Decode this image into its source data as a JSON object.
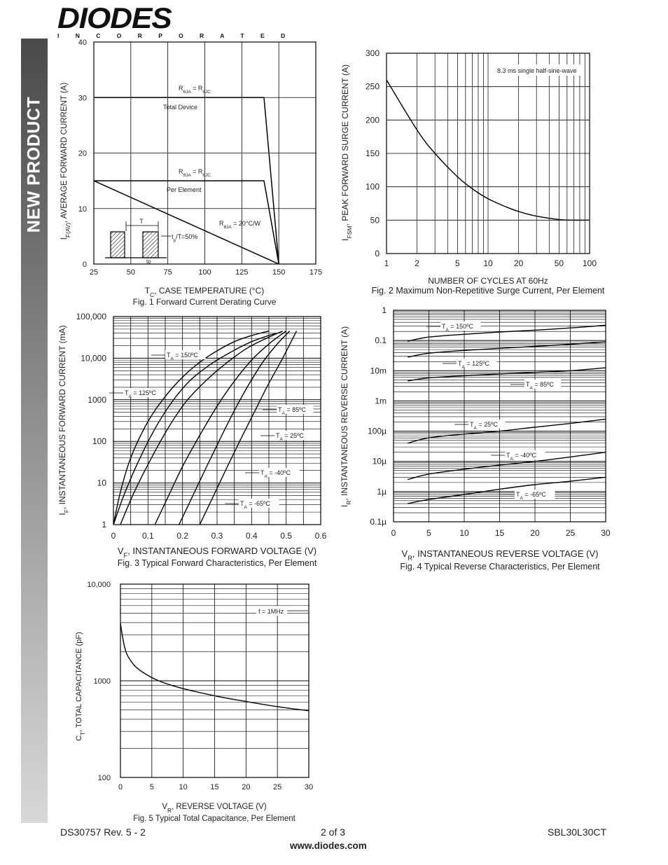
{
  "sidebar": {
    "label": "NEW PRODUCT"
  },
  "logo": {
    "name": "DIODES",
    "sub": "I N C O R P O R A T E D"
  },
  "footer": {
    "doc": "DS30757 Rev. 5 - 2",
    "page": "2 of 3",
    "part": "SBL30L30CT",
    "url": "www.diodes.com"
  },
  "chart_data": [
    {
      "type": "line",
      "id": "fig1",
      "title": "Fig. 1  Forward Current Derating Curve",
      "xlabel": "TC, CASE TEMPERATURE (°C)",
      "ylabel": "IF(AV), AVERAGE FORWARD CURRENT (A)",
      "xlim": [
        25,
        175
      ],
      "ylim": [
        0,
        40
      ],
      "xticks": [
        25,
        50,
        75,
        100,
        125,
        150,
        175
      ],
      "yticks": [
        0,
        10,
        20,
        30,
        40
      ],
      "series": [
        {
          "name": "Total Device",
          "x": [
            25,
            140,
            150
          ],
          "y": [
            30,
            30,
            0
          ]
        },
        {
          "name": "Per Element",
          "x": [
            25,
            140,
            150
          ],
          "y": [
            15,
            15,
            0
          ]
        },
        {
          "name": "RθJA = 20°C/W",
          "x": [
            25,
            150
          ],
          "y": [
            15,
            0
          ]
        }
      ],
      "annotations": {
        "r1": "RθJA = RθJC",
        "r1_label": "Total Device",
        "r2": "RθJA = RθJC",
        "r2_label": "Per Element",
        "r3": "RθJA = 20°C/W",
        "pulse_T": "T",
        "pulse_tp": "tp",
        "duty": "tp/T=50%"
      }
    },
    {
      "type": "line",
      "id": "fig2",
      "title": "Fig. 2  Maximum Non-Repetitive Surge Current, Per Element",
      "xlabel": "NUMBER OF CYCLES AT 60Hz",
      "ylabel": "IFSM, PEAK FORWARD SURGE CURRENT (A)",
      "xscale": "log",
      "xlim": [
        1,
        100
      ],
      "ylim": [
        0,
        300
      ],
      "xticks": [
        1,
        2,
        5,
        10,
        20,
        50,
        100
      ],
      "yticks": [
        0,
        50,
        100,
        150,
        200,
        250,
        300
      ],
      "note": "8.3 ms single half-sine-wave",
      "series": [
        {
          "name": "",
          "x": [
            1,
            2,
            3,
            5,
            7,
            10,
            15,
            20,
            30,
            50,
            70,
            100
          ],
          "y": [
            260,
            185,
            150,
            115,
            97,
            82,
            70,
            63,
            56,
            51,
            50,
            50
          ]
        }
      ]
    },
    {
      "type": "line",
      "id": "fig3",
      "title": "Fig. 3  Typical Forward Characteristics, Per Element",
      "xlabel": "VF, INSTANTANEOUS FORWARD VOLTAGE (V)",
      "ylabel": "IF, INSTANTANEOUS FORWARD CURRENT (mA)",
      "yscale": "log",
      "xlim": [
        0,
        0.6
      ],
      "ylim": [
        1,
        100000
      ],
      "xticks": [
        0,
        0.1,
        0.2,
        0.3,
        0.4,
        0.5,
        0.6
      ],
      "xtick_labels": [
        "0",
        "0.1",
        "0.2",
        "0.3",
        "0.4",
        "0.5",
        "0.6"
      ],
      "yticks": [
        1,
        10,
        100,
        1000,
        10000,
        100000
      ],
      "ytick_labels": [
        "1",
        "10",
        "100",
        "1000",
        "10,000",
        "100,000"
      ],
      "series": [
        {
          "name": "TA = 150ºC",
          "x": [
            0.0,
            0.02,
            0.05,
            0.1,
            0.15,
            0.2,
            0.25,
            0.3,
            0.35,
            0.4,
            0.45
          ],
          "y": [
            1,
            6,
            40,
            300,
            1200,
            3500,
            8000,
            15000,
            25000,
            35000,
            45000
          ]
        },
        {
          "name": "TA = 125ºC",
          "x": [
            0.0,
            0.03,
            0.07,
            0.12,
            0.17,
            0.22,
            0.28,
            0.34,
            0.4,
            0.47
          ],
          "y": [
            1,
            5,
            30,
            200,
            900,
            2800,
            7000,
            14000,
            25000,
            40000
          ]
        },
        {
          "name": "TA = 85ºC",
          "x": [
            0.02,
            0.06,
            0.11,
            0.16,
            0.21,
            0.27,
            0.33,
            0.39,
            0.45,
            0.49
          ],
          "y": [
            1,
            6,
            40,
            220,
            900,
            3000,
            8000,
            18000,
            32000,
            45000
          ]
        },
        {
          "name": "TA = 25ºC",
          "x": [
            0.12,
            0.16,
            0.2,
            0.25,
            0.3,
            0.35,
            0.4,
            0.45,
            0.5
          ],
          "y": [
            1,
            5,
            25,
            140,
            700,
            2800,
            9000,
            22000,
            45000
          ]
        },
        {
          "name": "TA = -40ºC",
          "x": [
            0.19,
            0.23,
            0.27,
            0.31,
            0.35,
            0.39,
            0.43,
            0.47,
            0.51
          ],
          "y": [
            1,
            5,
            25,
            120,
            550,
            2200,
            7500,
            20000,
            45000
          ]
        },
        {
          "name": "TA = -65ºC",
          "x": [
            0.25,
            0.29,
            0.33,
            0.37,
            0.41,
            0.45,
            0.49,
            0.53
          ],
          "y": [
            1,
            5,
            25,
            120,
            550,
            2500,
            10000,
            45000
          ]
        }
      ]
    },
    {
      "type": "line",
      "id": "fig4",
      "title": "Fig. 4  Typical Reverse Characteristics, Per Element",
      "xlabel": "VR, INSTANTANEOUS REVERSE VOLTAGE (V)",
      "ylabel": "IR, INSTANTANEOUS REVERSE CURRENT (A)",
      "yscale": "log",
      "xlim": [
        0,
        30
      ],
      "ylim": [
        1e-07,
        1
      ],
      "xticks": [
        0,
        5,
        10,
        15,
        20,
        25,
        30
      ],
      "yticks": [
        1,
        0.1,
        0.01,
        0.001,
        0.0001,
        1e-05,
        1e-06,
        1e-07
      ],
      "ytick_labels": [
        "1",
        "0.1",
        "10m",
        "1m",
        "100µ",
        "10µ",
        "1µ",
        "0.1µ"
      ],
      "series": [
        {
          "name": "TA = 150ºC",
          "x": [
            2,
            5,
            10,
            15,
            20,
            25,
            30
          ],
          "y": [
            0.095,
            0.13,
            0.16,
            0.19,
            0.22,
            0.26,
            0.32
          ]
        },
        {
          "name": "TA = 125ºC",
          "x": [
            2,
            5,
            10,
            15,
            20,
            25,
            30
          ],
          "y": [
            0.028,
            0.038,
            0.047,
            0.055,
            0.064,
            0.075,
            0.09
          ]
        },
        {
          "name": "TA = 85ºC",
          "x": [
            2,
            5,
            10,
            15,
            20,
            25,
            30
          ],
          "y": [
            0.0046,
            0.0058,
            0.0068,
            0.0078,
            0.0088,
            0.01,
            0.0125
          ]
        },
        {
          "name": "TA = 25ºC",
          "x": [
            2,
            5,
            10,
            15,
            20,
            25,
            30
          ],
          "y": [
            4e-05,
            6e-05,
            8e-05,
            0.0001,
            0.000135,
            0.00018,
            0.00025
          ]
        },
        {
          "name": "TA = -40ºC",
          "x": [
            2,
            5,
            10,
            15,
            20,
            25,
            30
          ],
          "y": [
            2.5e-06,
            3.8e-06,
            5.5e-06,
            7.5e-06,
            1e-05,
            1.4e-05,
            2e-05
          ]
        },
        {
          "name": "TA = -65ºC",
          "x": [
            2,
            5,
            10,
            15,
            20,
            25,
            30
          ],
          "y": [
            4e-07,
            5.5e-07,
            8e-07,
            1.2e-06,
            1.7e-06,
            2.2e-06,
            3e-06
          ]
        }
      ]
    },
    {
      "type": "line",
      "id": "fig5",
      "title": "Fig. 5  Typical Total Capacitance, Per Element",
      "xlabel": "VR, REVERSE VOLTAGE (V)",
      "ylabel": "CT, TOTAL CAPACITANCE (pF)",
      "yscale": "log",
      "xlim": [
        0,
        30
      ],
      "ylim": [
        100,
        10000
      ],
      "xticks": [
        0,
        5,
        10,
        15,
        20,
        25,
        30
      ],
      "yticks": [
        100,
        1000,
        10000
      ],
      "ytick_labels": [
        "100",
        "1000",
        "10,000"
      ],
      "note": "f = 1MHz",
      "series": [
        {
          "name": "",
          "x": [
            0,
            0.5,
            1,
            2,
            3,
            5,
            7,
            10,
            15,
            20,
            25,
            30
          ],
          "y": [
            3900,
            2500,
            1900,
            1500,
            1300,
            1080,
            950,
            830,
            700,
            610,
            540,
            490
          ]
        }
      ]
    }
  ]
}
